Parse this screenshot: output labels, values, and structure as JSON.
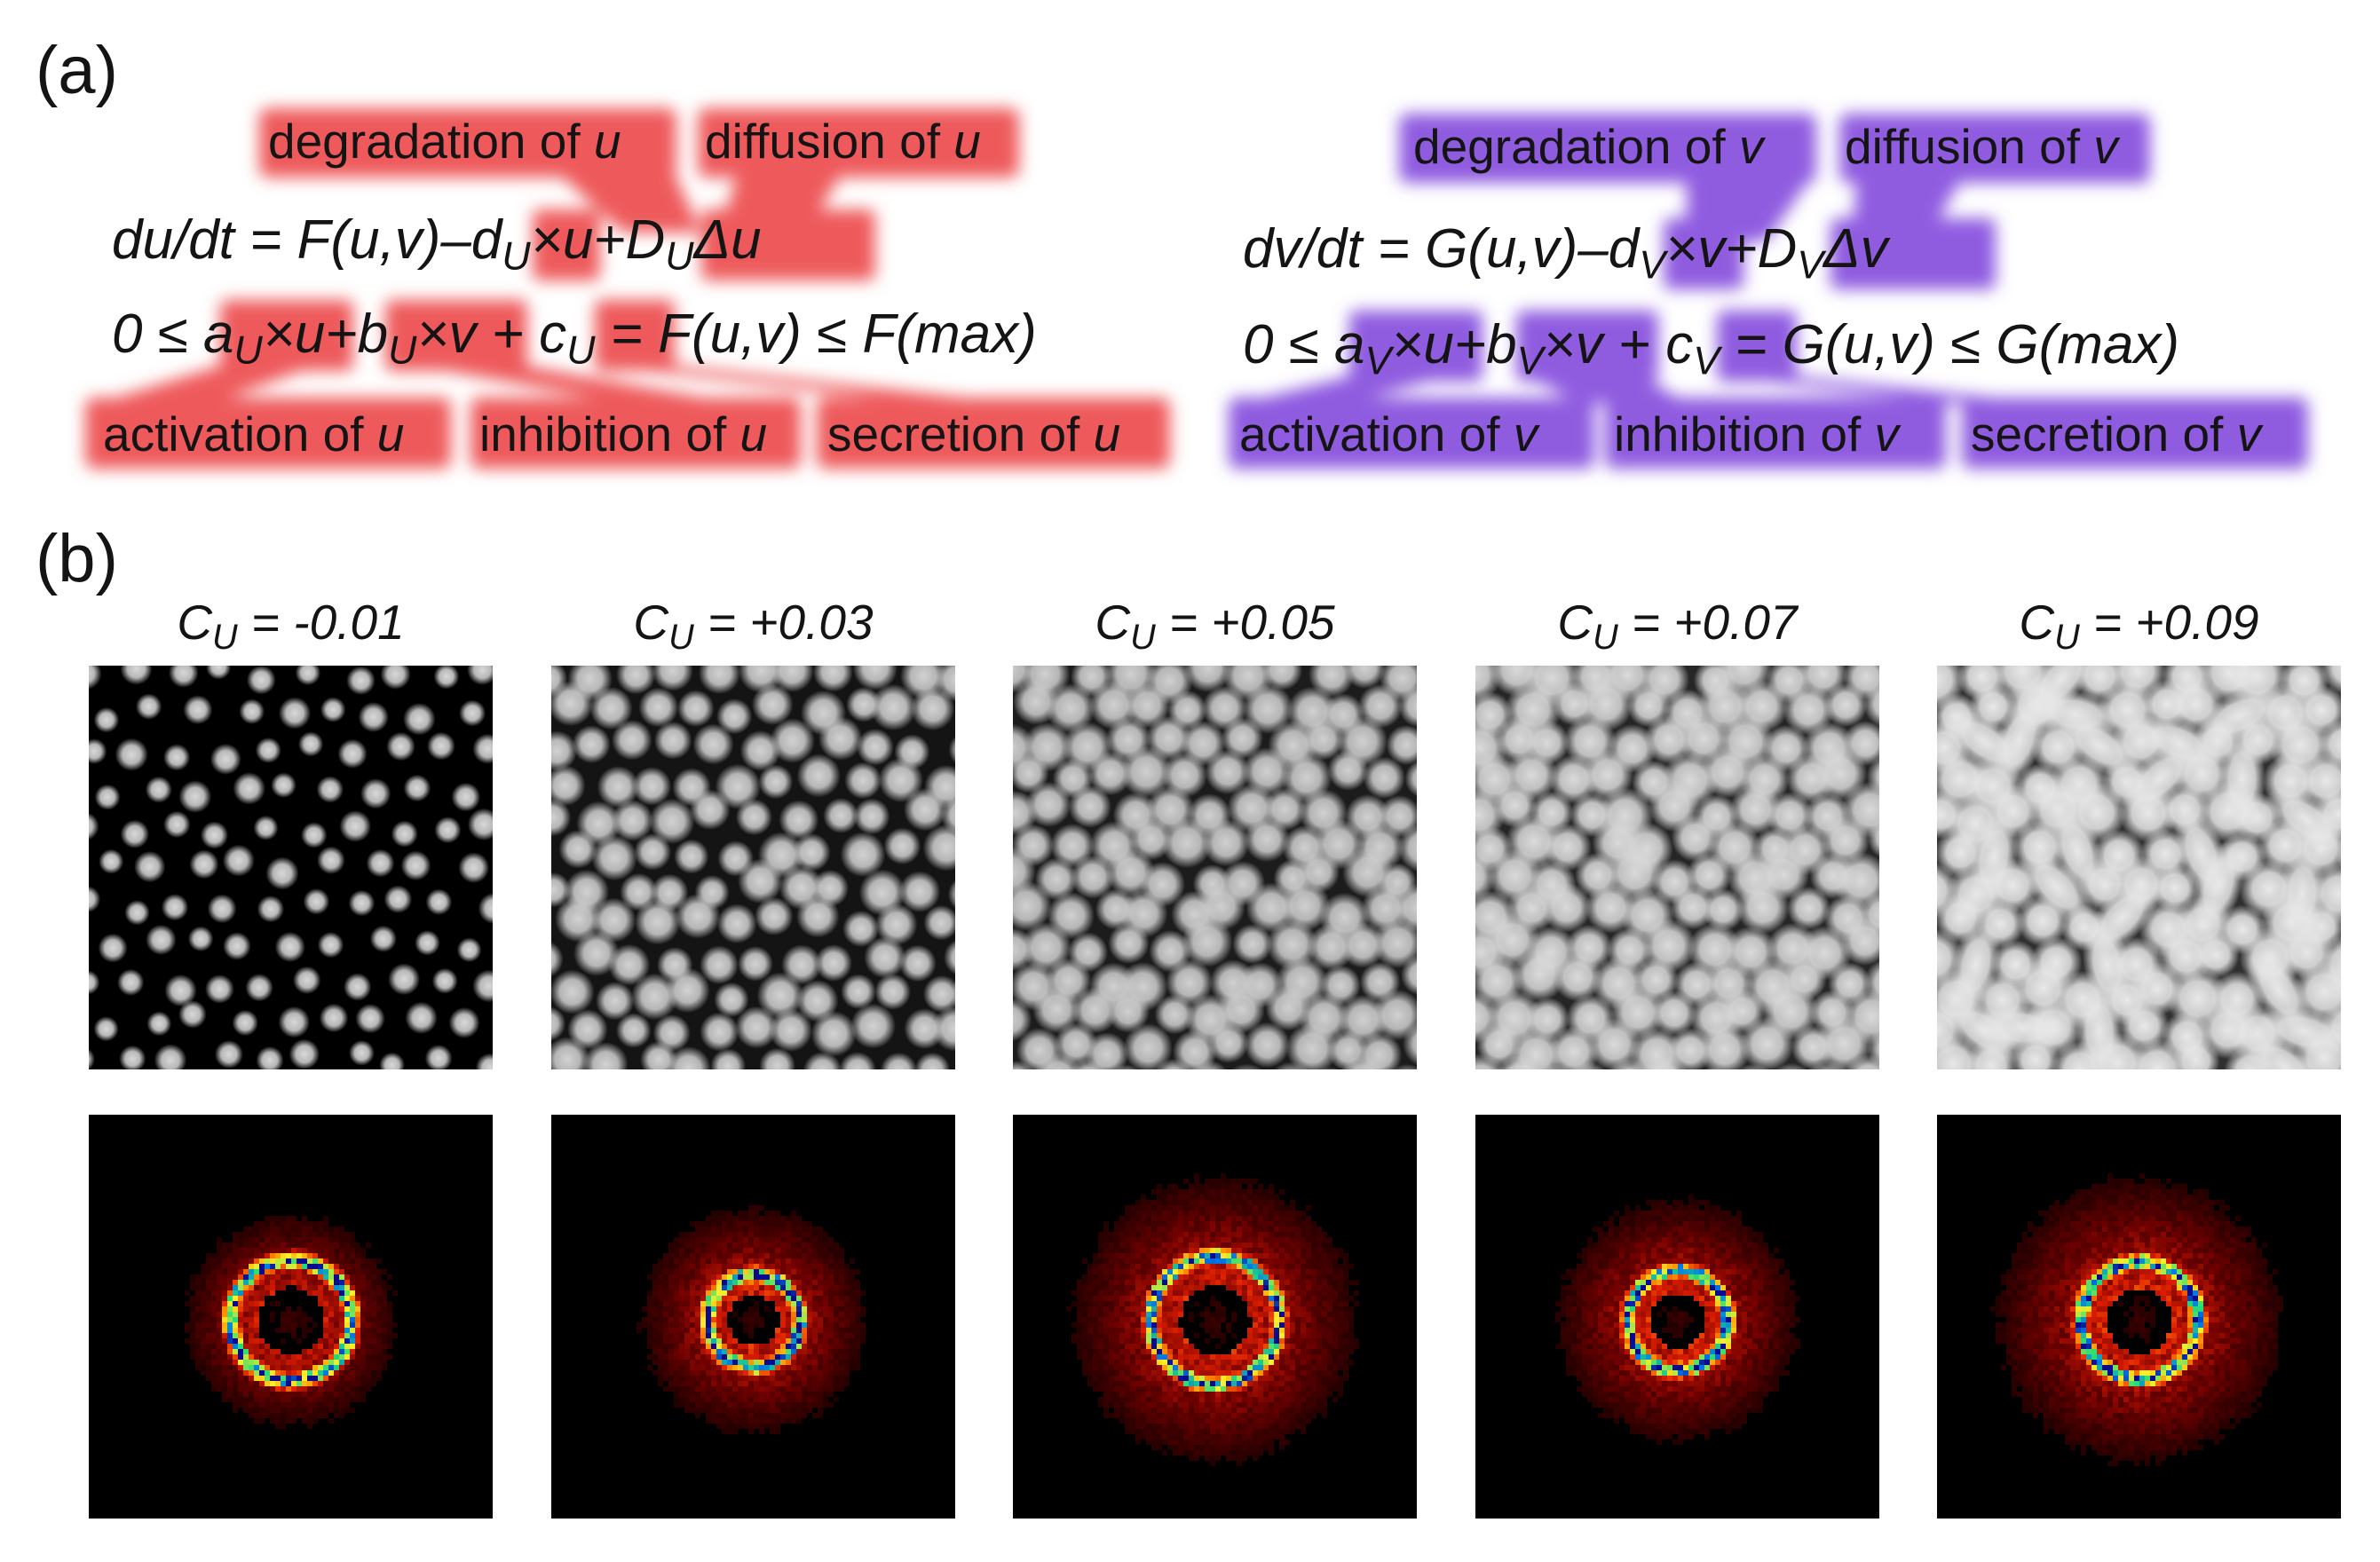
{
  "panel_a": {
    "label": "(a)",
    "colors": {
      "u_highlight": "#ee5a5c",
      "v_highlight": "#8f5be0"
    },
    "u": {
      "eq_lhs": "du/dt = F(u,v)–d",
      "eq_d_sub": "U",
      "eq_mid": "×u+D",
      "eq_D_sub": "U",
      "eq_end": "Δu",
      "ineq_start": "0 ≤ a",
      "ineq_a_sub": "U",
      "ineq_1": "×u+b",
      "ineq_b_sub": "U",
      "ineq_2": "×v + c",
      "ineq_c_sub": "U",
      "ineq_end": " = F(u,v) ≤ F(max)",
      "top_tags": [
        {
          "text": "degradation of ",
          "var": "u"
        },
        {
          "text": "diffusion of ",
          "var": "u"
        }
      ],
      "bottom_tags": [
        {
          "text": "activation of ",
          "var": "u"
        },
        {
          "text": "inhibition of ",
          "var": "u"
        },
        {
          "text": "secretion of ",
          "var": "u"
        }
      ]
    },
    "v": {
      "eq_lhs": "dv/dt = G(u,v)–d",
      "eq_d_sub": "V",
      "eq_mid": "×v+D",
      "eq_D_sub": "V",
      "eq_end": "Δv",
      "ineq_start": "0 ≤ a",
      "ineq_a_sub": "V",
      "ineq_1": "×u+b",
      "ineq_b_sub": "V",
      "ineq_2": "×v + c",
      "ineq_c_sub": "V",
      "ineq_end": " = G(u,v) ≤ G(max)",
      "top_tags": [
        {
          "text": "degradation of ",
          "var": "v"
        },
        {
          "text": "diffusion of ",
          "var": "v"
        }
      ],
      "bottom_tags": [
        {
          "text": "activation of ",
          "var": "v"
        },
        {
          "text": "inhibition of ",
          "var": "v"
        },
        {
          "text": "secretion of ",
          "var": "v"
        }
      ]
    }
  },
  "panel_b": {
    "label": "(b)",
    "columns": [
      {
        "var": "C",
        "sub": "U",
        "value": " = -0.01"
      },
      {
        "var": "C",
        "sub": "U",
        "value": " = +0.03"
      },
      {
        "var": "C",
        "sub": "U",
        "value": " = +0.05"
      },
      {
        "var": "C",
        "sub": "U",
        "value": " = +0.07"
      },
      {
        "var": "C",
        "sub": "U",
        "value": " = +0.09"
      }
    ]
  }
}
